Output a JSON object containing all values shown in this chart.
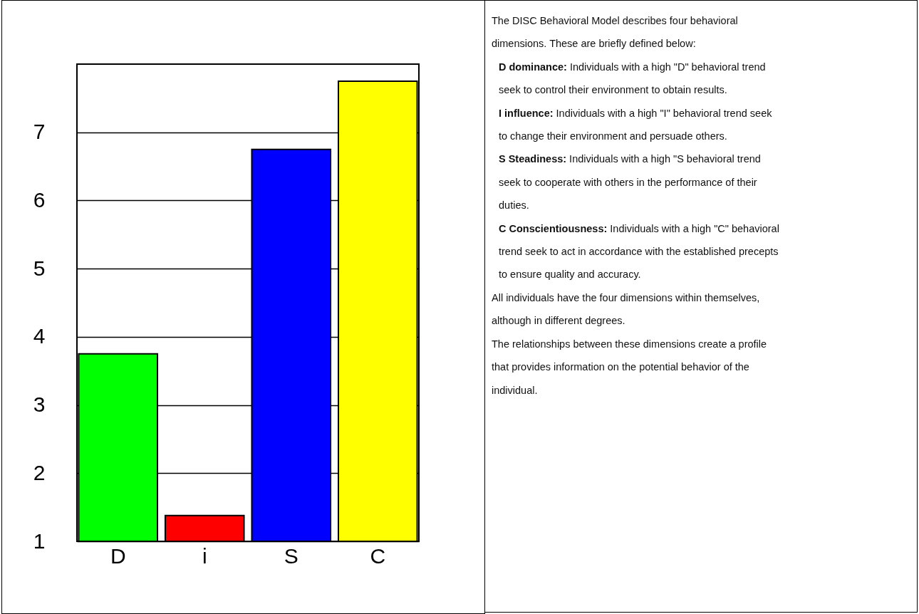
{
  "chart_data": {
    "type": "bar",
    "categories": [
      "D",
      "i",
      "S",
      "C"
    ],
    "values": [
      3.75,
      1.38,
      6.75,
      7.75
    ],
    "colors": [
      "#00ff00",
      "#ff0000",
      "#0000ff",
      "#ffff00"
    ],
    "ylim": [
      1,
      8
    ],
    "yticks": [
      1,
      2,
      3,
      4,
      5,
      6,
      7
    ],
    "grid": "y",
    "annotations": [
      "The DISC Behavioral Model describes four behavioral dimensions. These are briefly defined below:",
      "D dominance: Individuals with a high \"D\" behavioral trend seek to control their environment to obtain results.",
      "I influence: Individuals with a high \"I\" behavioral trend seek to change their environment and persuade others.",
      "S Steadiness: Individuals with a high \"S behavioral trend seek to cooperate with others in the performance of their duties.",
      "C Conscientiousness: Individuals with a high \"C\" behavioral trend seek to act in accordance with the established precepts to ensure quality and accuracy.",
      "All individuals have the four dimensions within themselves, although in different degrees.",
      "The relationships between these dimensions create a profile that provides information on the potential behavior of the individual."
    ]
  }
}
